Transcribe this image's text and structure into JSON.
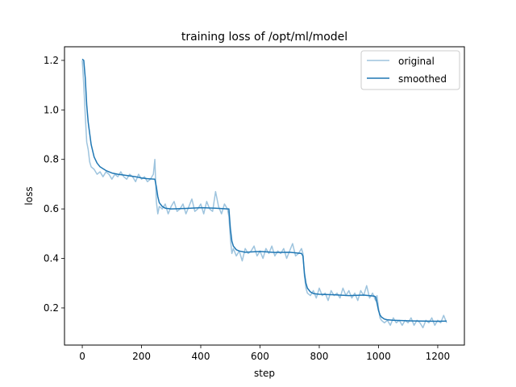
{
  "chart_data": {
    "type": "line",
    "title": "training loss of /opt/ml/model",
    "xlabel": "step",
    "ylabel": "loss",
    "xlim": [
      -60,
      1290
    ],
    "ylim": [
      0.05,
      1.255
    ],
    "xticks": [
      0,
      200,
      400,
      600,
      800,
      1000,
      1200
    ],
    "yticks": [
      0.2,
      0.4,
      0.6,
      0.8,
      1.0,
      1.2
    ],
    "xtick_labels": [
      "0",
      "200",
      "400",
      "600",
      "800",
      "1000",
      "1200"
    ],
    "ytick_labels": [
      "0.2",
      "0.4",
      "0.6",
      "0.8",
      "1.0",
      "1.2"
    ],
    "grid": false,
    "legend_position": "top-right",
    "colors": {
      "original": "#9ec4de",
      "smoothed": "#1f77b4"
    },
    "series": [
      {
        "name": "original",
        "x": [
          0,
          5,
          10,
          15,
          20,
          25,
          30,
          40,
          50,
          60,
          70,
          80,
          90,
          100,
          110,
          120,
          130,
          140,
          150,
          160,
          170,
          180,
          190,
          200,
          210,
          220,
          230,
          240,
          245,
          248,
          250,
          255,
          260,
          270,
          280,
          290,
          300,
          310,
          320,
          330,
          340,
          350,
          360,
          370,
          380,
          390,
          400,
          410,
          420,
          430,
          440,
          450,
          460,
          470,
          480,
          490,
          495,
          500,
          505,
          510,
          520,
          530,
          540,
          550,
          560,
          570,
          580,
          590,
          600,
          610,
          620,
          630,
          640,
          650,
          660,
          670,
          680,
          690,
          700,
          710,
          720,
          730,
          740,
          745,
          750,
          755,
          760,
          770,
          780,
          790,
          800,
          810,
          820,
          830,
          840,
          850,
          860,
          870,
          880,
          890,
          900,
          910,
          920,
          930,
          940,
          950,
          960,
          970,
          980,
          990,
          995,
          1000,
          1005,
          1010,
          1020,
          1030,
          1040,
          1050,
          1060,
          1070,
          1080,
          1090,
          1100,
          1110,
          1120,
          1130,
          1140,
          1150,
          1160,
          1170,
          1180,
          1190,
          1200,
          1210,
          1220,
          1230
        ],
        "values": [
          1.2,
          1.1,
          0.98,
          0.87,
          0.84,
          0.79,
          0.77,
          0.76,
          0.74,
          0.75,
          0.73,
          0.75,
          0.74,
          0.72,
          0.74,
          0.73,
          0.75,
          0.73,
          0.72,
          0.74,
          0.73,
          0.71,
          0.74,
          0.72,
          0.73,
          0.71,
          0.72,
          0.74,
          0.8,
          0.7,
          0.63,
          0.58,
          0.61,
          0.6,
          0.62,
          0.58,
          0.61,
          0.63,
          0.59,
          0.6,
          0.62,
          0.58,
          0.61,
          0.64,
          0.59,
          0.6,
          0.62,
          0.58,
          0.63,
          0.6,
          0.59,
          0.67,
          0.61,
          0.58,
          0.62,
          0.6,
          0.57,
          0.48,
          0.42,
          0.44,
          0.41,
          0.43,
          0.39,
          0.44,
          0.42,
          0.43,
          0.45,
          0.41,
          0.43,
          0.4,
          0.44,
          0.42,
          0.45,
          0.41,
          0.43,
          0.42,
          0.44,
          0.4,
          0.43,
          0.46,
          0.41,
          0.42,
          0.44,
          0.42,
          0.33,
          0.28,
          0.26,
          0.25,
          0.27,
          0.24,
          0.28,
          0.25,
          0.26,
          0.23,
          0.27,
          0.25,
          0.26,
          0.24,
          0.28,
          0.25,
          0.27,
          0.24,
          0.26,
          0.23,
          0.27,
          0.25,
          0.29,
          0.24,
          0.26,
          0.23,
          0.25,
          0.2,
          0.16,
          0.15,
          0.14,
          0.15,
          0.13,
          0.16,
          0.14,
          0.15,
          0.13,
          0.15,
          0.14,
          0.16,
          0.13,
          0.15,
          0.14,
          0.12,
          0.15,
          0.14,
          0.16,
          0.13,
          0.15,
          0.14,
          0.17,
          0.14
        ]
      },
      {
        "name": "smoothed",
        "x": [
          0,
          5,
          10,
          15,
          20,
          30,
          40,
          50,
          60,
          80,
          100,
          120,
          150,
          180,
          200,
          220,
          245,
          250,
          255,
          260,
          270,
          280,
          300,
          350,
          400,
          450,
          490,
          495,
          500,
          505,
          510,
          520,
          530,
          550,
          600,
          650,
          700,
          740,
          745,
          750,
          755,
          760,
          770,
          780,
          800,
          850,
          900,
          950,
          985,
          990,
          995,
          1000,
          1005,
          1010,
          1020,
          1030,
          1050,
          1100,
          1150,
          1200,
          1230
        ],
        "values": [
          1.205,
          1.2,
          1.13,
          1.02,
          0.95,
          0.86,
          0.81,
          0.785,
          0.77,
          0.755,
          0.745,
          0.74,
          0.735,
          0.73,
          0.725,
          0.722,
          0.72,
          0.69,
          0.65,
          0.625,
          0.61,
          0.603,
          0.6,
          0.602,
          0.605,
          0.603,
          0.6,
          0.6,
          0.52,
          0.47,
          0.45,
          0.435,
          0.43,
          0.425,
          0.428,
          0.424,
          0.425,
          0.42,
          0.41,
          0.34,
          0.3,
          0.28,
          0.265,
          0.258,
          0.255,
          0.253,
          0.25,
          0.252,
          0.248,
          0.245,
          0.22,
          0.19,
          0.172,
          0.163,
          0.155,
          0.152,
          0.15,
          0.148,
          0.147,
          0.146,
          0.147
        ]
      }
    ]
  }
}
